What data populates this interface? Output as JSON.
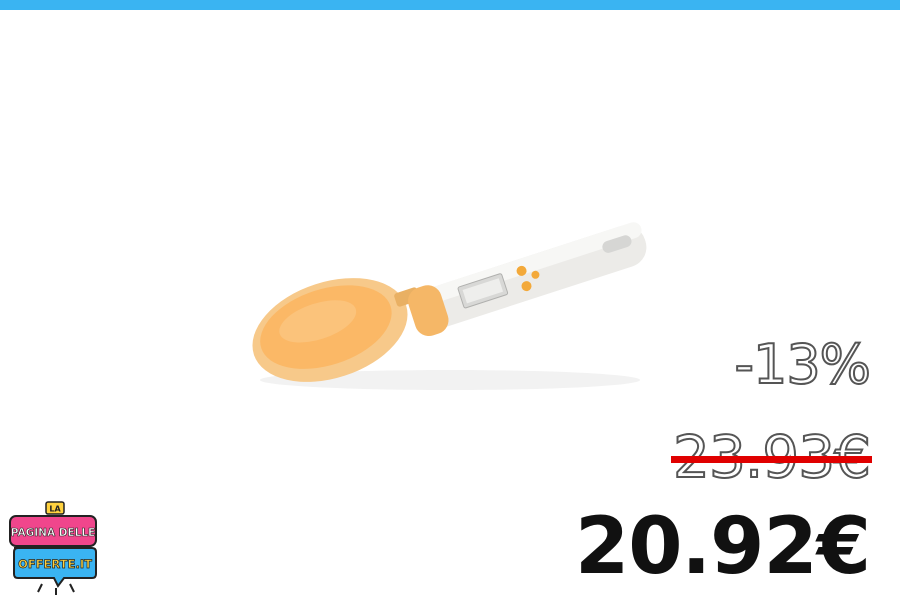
{
  "banner": {
    "color": "#3ab4f2"
  },
  "product": {
    "icon": "digital-measuring-spoon-scale-image"
  },
  "pricing": {
    "discount": "-13%",
    "original_price": "23.93€",
    "current_price": "20.92€",
    "strike_color": "#e00000"
  },
  "logo": {
    "line1": "LA",
    "line2": "PAGINA DELLE",
    "line3": "OFFERTE.IT"
  }
}
